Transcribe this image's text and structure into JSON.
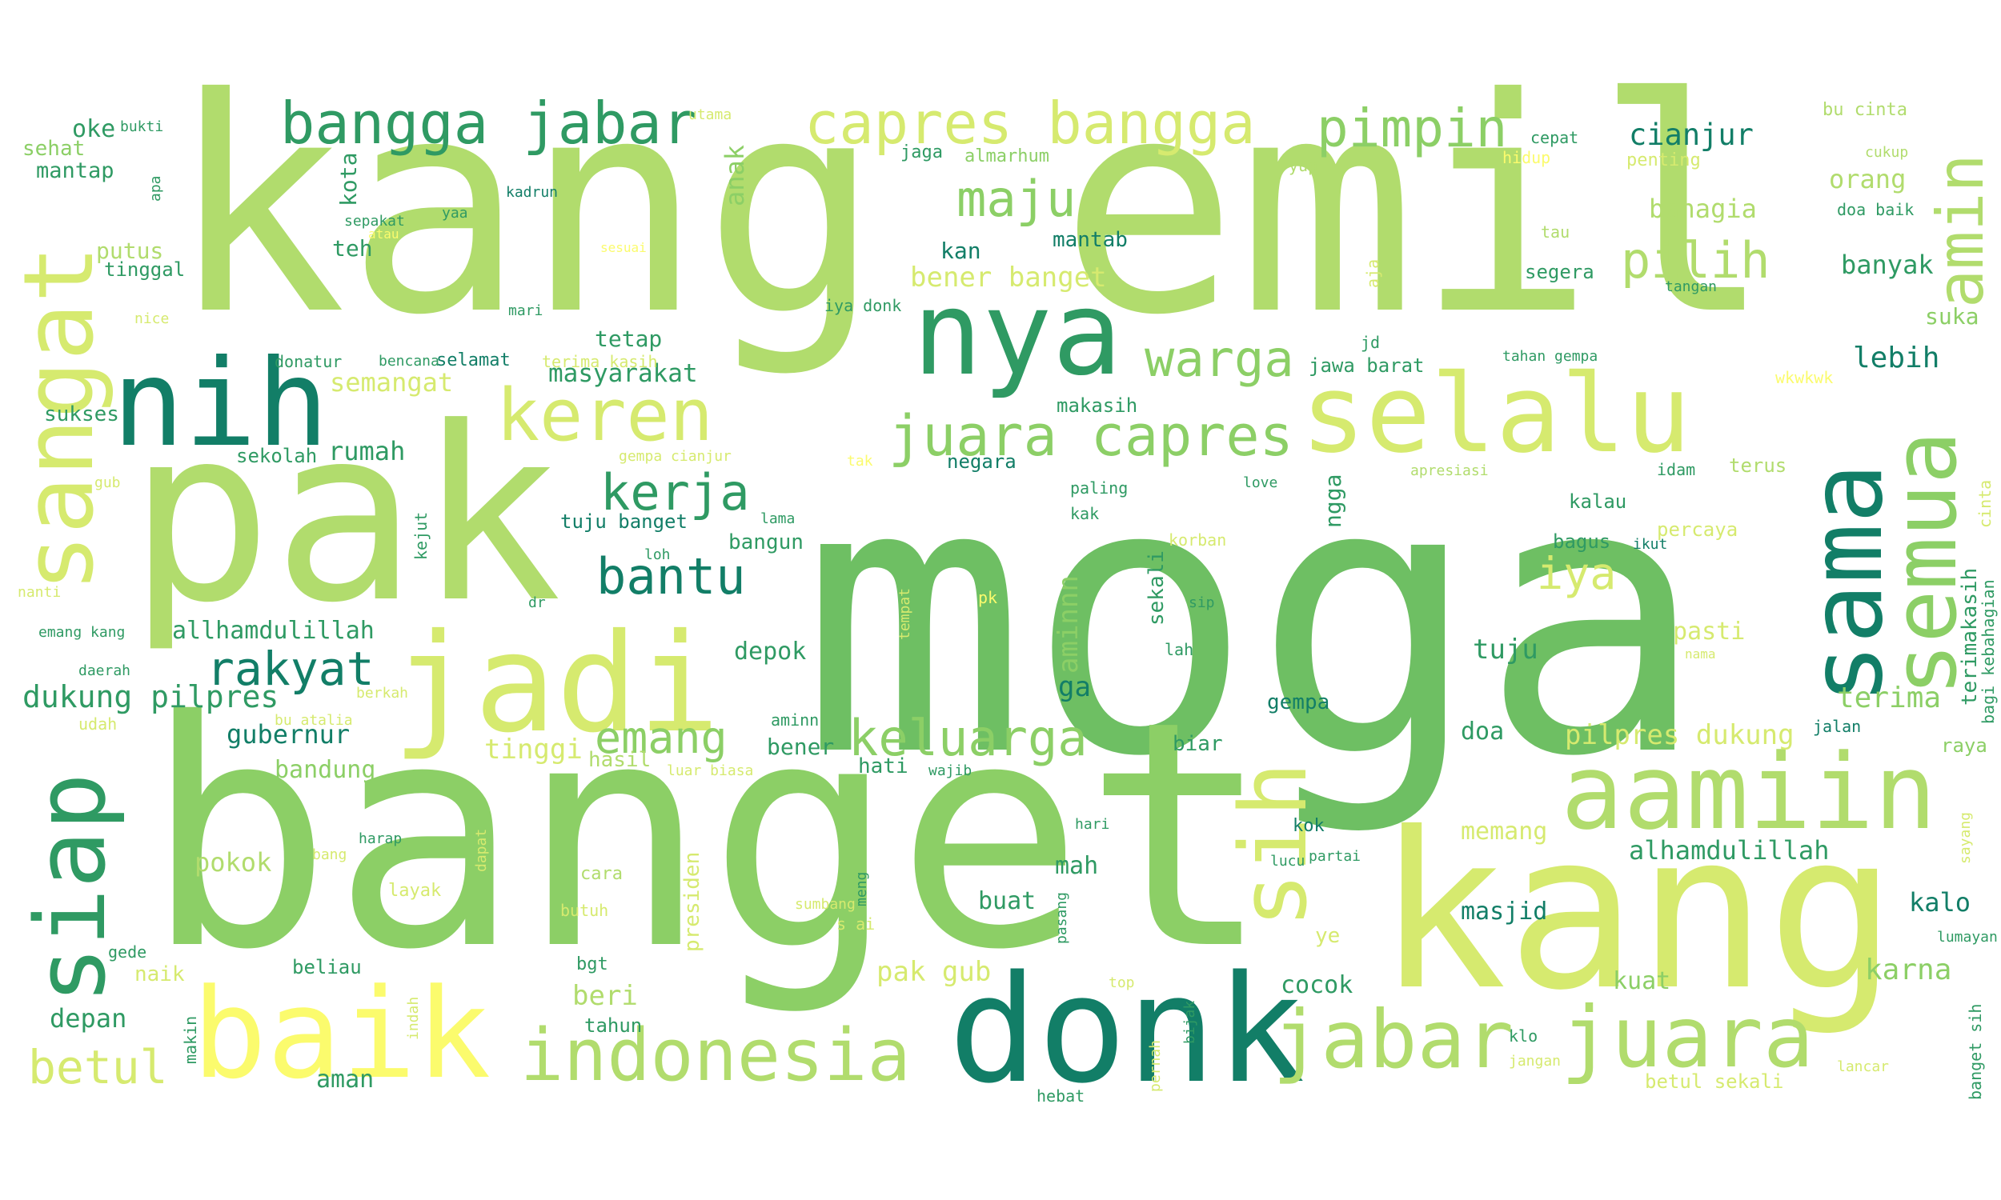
{
  "palette": {
    "dark": "#127e67",
    "teal": "#2f9a63",
    "green": "#6ebf63",
    "mid": "#8ccf66",
    "light": "#b1dc6d",
    "lime": "#d6ea6f",
    "yellow": "#fbfb6d"
  },
  "words": {
    "kang_emil": "kang emil",
    "moga": "moga",
    "banget": "banget",
    "pak": "pak",
    "kang": "kang",
    "donk": "donk",
    "nih": "nih",
    "nya": "nya",
    "baik": "baik",
    "jadi": "jadi",
    "selalu": "selalu",
    "sangat": "sangat",
    "siap": "siap",
    "sama": "sama",
    "semua": "semua",
    "aamiin": "aamiin",
    "indonesia": "indonesia",
    "juara": "juara",
    "jabar": "jabar",
    "keren": "keren",
    "sih": "sih",
    "amin": "amin",
    "bangga_jabar": "bangga jabar",
    "capres_bangga": "capres bangga",
    "pimpin": "pimpin",
    "juara_capres": "juara capres",
    "maju": "maju",
    "warga": "warga",
    "pilih": "pilih",
    "kerja": "kerja",
    "bantu": "bantu",
    "keluarga": "keluarga",
    "rakyat": "rakyat",
    "emang": "emang",
    "iya": "iya",
    "betul": "betul",
    "dukung_pilpres": "dukung pilpres",
    "cianjur": "cianjur",
    "masyarakat": "masyarakat",
    "bener_banget": "bener banget",
    "semangat": "semangat",
    "terima": "terima",
    "pilpres_dukung": "pilpres dukung",
    "alhamdulillah": "alhamdulillah",
    "allhamdulillah": "allhamdulillah",
    "gubernur": "gubernur",
    "tinggi": "tinggi",
    "orang": "orang",
    "bahagia": "bahagia",
    "banyak": "banyak",
    "lebih": "lebih",
    "karna": "karna",
    "kalo": "kalo",
    "masjid": "masjid",
    "kuat": "kuat",
    "doa": "doa",
    "tuju": "tuju",
    "pasti": "pasti",
    "anak": "anak",
    "aminnn": "aminnn",
    "rumah": "rumah",
    "depok": "depok",
    "bandung": "bandung",
    "pokok": "pokok",
    "depan": "depan",
    "aman": "aman",
    "buat": "buat",
    "mah": "mah",
    "cocok": "cocok",
    "memang": "memang",
    "ngga": "ngga",
    "sekali": "sekali",
    "pak_gub": "pak gub",
    "beri": "beri",
    "hasil": "hasil",
    "bener": "bener",
    "hati": "hati",
    "ga": "ga",
    "gempa": "gempa",
    "biar": "biar",
    "suka": "suka",
    "raya": "raya",
    "oke": "oke",
    "sehat": "sehat",
    "mantap": "mantap",
    "putus": "putus",
    "tinggal": "tinggal",
    "teh": "teh",
    "kota": "kota",
    "sukses": "sukses",
    "sekolah": "sekolah",
    "kan": "kan",
    "mantab": "mantab",
    "tetap": "tetap",
    "makasih": "makasih",
    "negara": "negara",
    "tuju_banget": "tuju banget",
    "bangun": "bangun",
    "jawa_barat": "jawa barat",
    "segera": "segera",
    "kalau": "kalau",
    "bagus": "bagus",
    "percaya": "percaya",
    "beliau": "beliau",
    "naik": "naik",
    "tahun": "tahun",
    "betul_sekali": "betul sekali",
    "terimakasih": "terimakasih",
    "bagi_kebahagian": "bagi kebahagian",
    "terus": "terus",
    "jaga": "jaga",
    "almarhum": "almarhum",
    "cepat": "cepat",
    "yup": "yup",
    "bu_cinta": "bu cinta",
    "cukup": "cukup",
    "penting": "penting",
    "hidup": "hidup",
    "doa_baik": "doa baik",
    "tau": "tau",
    "tangan": "tangan",
    "aja": "aja",
    "iya_donk": "iya donk",
    "bukti": "bukti",
    "utama": "utama",
    "apa": "apa",
    "kadrun": "kadrun",
    "sepakat": "sepakat",
    "yaa": "yaa",
    "atau": "atau",
    "sesuai": "sesuai",
    "nice": "nice",
    "mari": "mari",
    "donatur": "donatur",
    "bencana": "bencana",
    "selamat": "selamat",
    "terima_kasih": "terima kasih",
    "jd": "jd",
    "tahan_gempa": "tahan gempa",
    "wkwkwk": "wkwkwk",
    "gub": "gub",
    "gempa_cianjur": "gempa cianjur",
    "tak": "tak",
    "paling": "paling",
    "love": "love",
    "apresiasi": "apresiasi",
    "idam": "idam",
    "cinta": "cinta",
    "lama": "lama",
    "kak": "kak",
    "korban": "korban",
    "ikut": "ikut",
    "kejut": "kejut",
    "loh": "loh",
    "nanti": "nanti",
    "dr": "dr",
    "tempat": "tempat",
    "pk": "pk",
    "sip": "sip",
    "lah": "lah",
    "nama": "nama",
    "emang_kang": "emang kang",
    "daerah": "daerah",
    "berkah": "berkah",
    "bu_atalia": "bu atalia",
    "udah": "udah",
    "aminn": "aminn",
    "jalan": "jalan",
    "luar_biasa": "luar biasa",
    "wajib": "wajib",
    "harap": "harap",
    "bang": "bang",
    "dapat": "dapat",
    "presiden": "presiden",
    "hari": "hari",
    "kok": "kok",
    "lucu": "lucu",
    "partai": "partai",
    "sayang": "sayang",
    "layak": "layak",
    "cara": "cara",
    "butuh": "butuh",
    "sumbang": "sumbang",
    "s_ai": "s ai",
    "meng": "meng",
    "pasang": "pasang",
    "lumayan": "lumayan",
    "gede": "gede",
    "ye": "ye",
    "bgt": "bgt",
    "top": "top",
    "makin": "makin",
    "indah": "indah",
    "bijak": "bijak",
    "pernah": "pernah",
    "klo": "klo",
    "jangan": "jangan",
    "lancar": "lancar",
    "banget_sih": "banget sih",
    "hebat": "hebat"
  }
}
